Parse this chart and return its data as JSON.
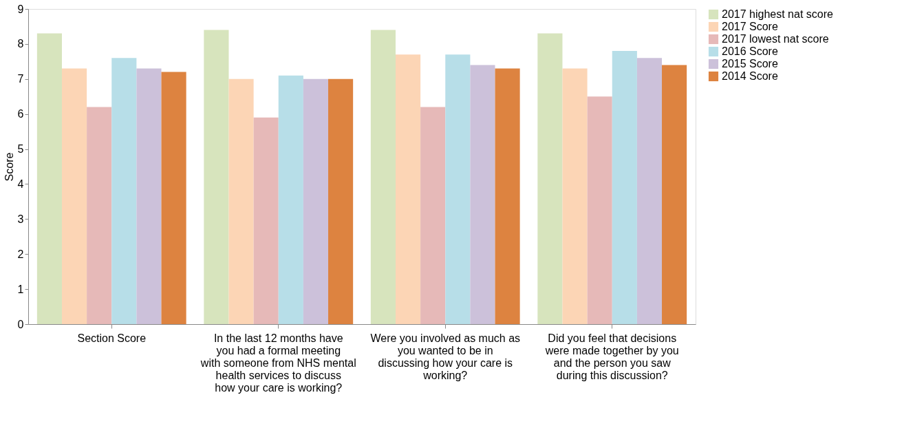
{
  "chart_data": {
    "type": "bar",
    "ylabel": "Score",
    "categories": [
      "Section Score",
      "In the last 12 months have you had a formal meeting with someone from NHS mental health services to discuss how your care is working?",
      "Were you involved as much as you wanted to be in discussing how your care is working?",
      "Did you feel that decisions were made together by you and the person you saw during this discussion?"
    ],
    "series": [
      {
        "name": "2017 highest nat score",
        "color": "#d7e4bd",
        "values": [
          8.3,
          8.4,
          8.4,
          8.3
        ]
      },
      {
        "name": "2017 Score",
        "color": "#fcd5b5",
        "values": [
          7.3,
          7.0,
          7.7,
          7.3
        ]
      },
      {
        "name": "2017 lowest nat score",
        "color": "#e6b9b8",
        "values": [
          6.2,
          5.9,
          6.2,
          6.5
        ]
      },
      {
        "name": "2016 Score",
        "color": "#b7dee8",
        "values": [
          7.6,
          7.1,
          7.7,
          7.8
        ]
      },
      {
        "name": "2015 Score",
        "color": "#ccc1da",
        "values": [
          7.3,
          7.0,
          7.4,
          7.6
        ]
      },
      {
        "name": "2014 Score",
        "color": "#dd8340",
        "values": [
          7.2,
          7.0,
          7.3,
          7.4
        ]
      }
    ],
    "ylim": [
      0,
      9
    ],
    "yticks": [
      0,
      1,
      2,
      3,
      4,
      5,
      6,
      7,
      8,
      9
    ],
    "grid": false,
    "legend": "right"
  }
}
